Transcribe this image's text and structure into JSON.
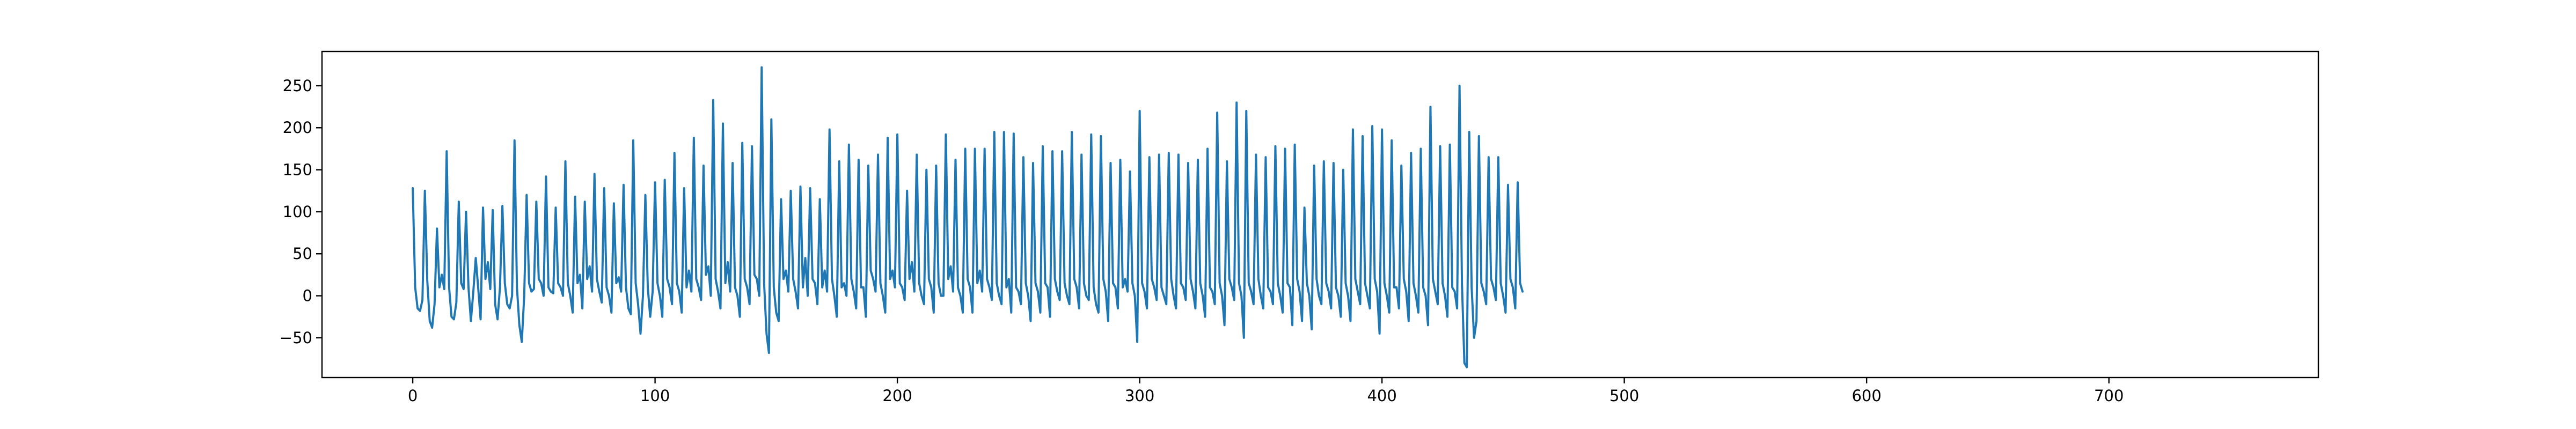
{
  "chart_data": {
    "type": "line",
    "title": "",
    "xlabel": "",
    "ylabel": "",
    "xlim": [
      -37.45,
      786.45
    ],
    "ylim": [
      -97.3,
      290.8
    ],
    "xticks": [
      0,
      100,
      200,
      300,
      400,
      500,
      600,
      700
    ],
    "yticks": [
      -50,
      0,
      50,
      100,
      150,
      200,
      250
    ],
    "xtick_labels": [
      "0",
      "100",
      "200",
      "300",
      "400",
      "500",
      "600",
      "700"
    ],
    "ytick_labels": [
      "−50",
      "0",
      "50",
      "100",
      "150",
      "200",
      "250"
    ],
    "grid": false,
    "legend": "none",
    "series": [
      {
        "color": "#1f77b4",
        "x_start": 0,
        "x_step": 1,
        "values": [
          128,
          10,
          -15,
          -18,
          -5,
          125,
          18,
          -30,
          -38,
          -10,
          80,
          10,
          25,
          8,
          172,
          10,
          -25,
          -28,
          -8,
          112,
          15,
          8,
          100,
          10,
          -30,
          5,
          45,
          10,
          -28,
          105,
          20,
          40,
          8,
          102,
          -10,
          -28,
          10,
          107,
          15,
          -10,
          -15,
          0,
          185,
          10,
          -35,
          -55,
          0,
          120,
          15,
          5,
          8,
          112,
          20,
          15,
          0,
          142,
          10,
          5,
          3,
          105,
          15,
          10,
          0,
          160,
          15,
          0,
          -20,
          118,
          15,
          25,
          -15,
          112,
          20,
          35,
          5,
          145,
          20,
          5,
          -8,
          128,
          10,
          0,
          -20,
          110,
          15,
          22,
          5,
          132,
          10,
          -15,
          -22,
          185,
          15,
          -10,
          -45,
          0,
          120,
          10,
          -25,
          5,
          135,
          15,
          0,
          -25,
          138,
          20,
          10,
          -10,
          170,
          15,
          5,
          -20,
          128,
          10,
          30,
          5,
          188,
          20,
          10,
          -5,
          155,
          25,
          35,
          0,
          233,
          20,
          5,
          -15,
          205,
          15,
          40,
          5,
          158,
          10,
          0,
          -25,
          182,
          20,
          10,
          -10,
          178,
          25,
          20,
          0,
          272,
          15,
          -45,
          -68,
          210,
          10,
          -20,
          -30,
          115,
          20,
          30,
          5,
          125,
          20,
          5,
          -15,
          130,
          10,
          45,
          0,
          128,
          20,
          15,
          -10,
          115,
          10,
          30,
          5,
          198,
          20,
          0,
          -25,
          160,
          10,
          15,
          0,
          180,
          20,
          5,
          -15,
          162,
          10,
          10,
          -25,
          155,
          30,
          20,
          5,
          168,
          15,
          0,
          -20,
          188,
          20,
          30,
          10,
          192,
          15,
          10,
          -5,
          125,
          20,
          40,
          5,
          168,
          15,
          0,
          -10,
          150,
          20,
          10,
          -20,
          155,
          15,
          0,
          0,
          192,
          20,
          35,
          5,
          162,
          10,
          0,
          -20,
          175,
          20,
          10,
          -20,
          175,
          15,
          30,
          5,
          175,
          20,
          10,
          -5,
          195,
          15,
          0,
          -10,
          195,
          10,
          20,
          -20,
          193,
          10,
          5,
          -10,
          165,
          15,
          0,
          -30,
          158,
          15,
          5,
          -20,
          178,
          15,
          10,
          -25,
          172,
          20,
          5,
          -5,
          172,
          15,
          0,
          -10,
          195,
          20,
          10,
          -15,
          168,
          15,
          0,
          -5,
          192,
          10,
          -10,
          -20,
          190,
          20,
          5,
          -30,
          158,
          15,
          10,
          -15,
          162,
          10,
          20,
          5,
          148,
          15,
          0,
          -55,
          220,
          15,
          5,
          -15,
          165,
          20,
          10,
          -5,
          168,
          10,
          0,
          -10,
          170,
          20,
          0,
          -15,
          168,
          15,
          10,
          -5,
          158,
          20,
          5,
          -15,
          162,
          15,
          0,
          -25,
          175,
          10,
          5,
          -10,
          218,
          15,
          0,
          -35,
          160,
          20,
          10,
          -5,
          230,
          15,
          0,
          -50,
          220,
          15,
          5,
          -10,
          168,
          20,
          0,
          -15,
          165,
          10,
          5,
          -10,
          178,
          15,
          0,
          -20,
          175,
          15,
          10,
          -35,
          180,
          20,
          5,
          -30,
          105,
          15,
          0,
          -40,
          155,
          20,
          0,
          -10,
          160,
          15,
          5,
          -15,
          158,
          10,
          0,
          -25,
          150,
          15,
          0,
          -30,
          198,
          20,
          5,
          -10,
          190,
          15,
          0,
          -15,
          202,
          20,
          5,
          -45,
          198,
          15,
          0,
          -20,
          185,
          10,
          10,
          -15,
          155,
          20,
          5,
          -30,
          170,
          15,
          0,
          -20,
          175,
          10,
          0,
          -35,
          225,
          20,
          5,
          -10,
          178,
          15,
          0,
          -25,
          180,
          10,
          5,
          -15,
          250,
          15,
          -80,
          -85,
          195,
          10,
          -50,
          -30,
          190,
          15,
          5,
          -10,
          165,
          20,
          10,
          -5,
          165,
          15,
          0,
          -20,
          132,
          20,
          10,
          -15,
          135,
          15,
          5
        ]
      }
    ]
  }
}
